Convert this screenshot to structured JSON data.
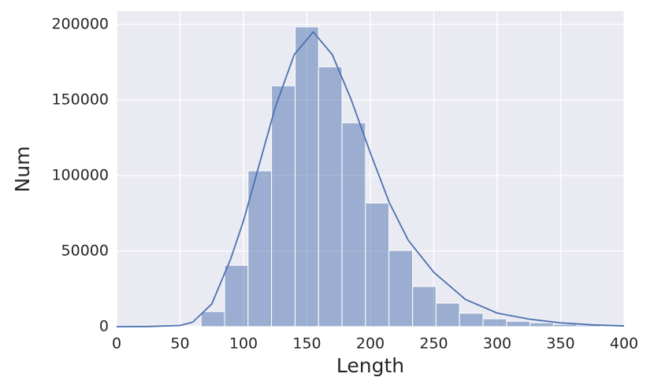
{
  "chart_data": {
    "type": "histogram",
    "xlabel": "Length",
    "ylabel": "Num",
    "bins": [
      11,
      29.5,
      48.0,
      66.6,
      85.1,
      103.6,
      122.1,
      140.7,
      159.2,
      177.7,
      196.2,
      214.7,
      233.3,
      251.8,
      270.3,
      288.9,
      307.4,
      325.9,
      344.4,
      363.0,
      381.5,
      400
    ],
    "values": [
      1000,
      200,
      300,
      10000,
      40600,
      103100,
      159400,
      198400,
      171900,
      134900,
      81800,
      50500,
      26600,
      15600,
      8900,
      5200,
      3600,
      2600,
      1600,
      1000,
      600
    ],
    "color": "#4c72b0",
    "kde": {
      "x": [
        0,
        25,
        50,
        60,
        75,
        90,
        100,
        110,
        125,
        140,
        155,
        170,
        185,
        200,
        215,
        230,
        250,
        275,
        300,
        325,
        350,
        375,
        400
      ],
      "values": [
        0,
        100,
        800,
        3000,
        15000,
        45000,
        70000,
        100000,
        145000,
        180000,
        195000,
        180000,
        150000,
        115000,
        82000,
        57000,
        36000,
        18000,
        9000,
        5000,
        2500,
        1200,
        500
      ]
    },
    "xlim": [
      0,
      400
    ],
    "ylim": [
      0,
      208850
    ],
    "xticks": [
      0,
      50,
      100,
      150,
      200,
      250,
      300,
      350,
      400
    ],
    "yticks": [
      0,
      50000,
      100000,
      150000,
      200000
    ],
    "grid": true
  }
}
